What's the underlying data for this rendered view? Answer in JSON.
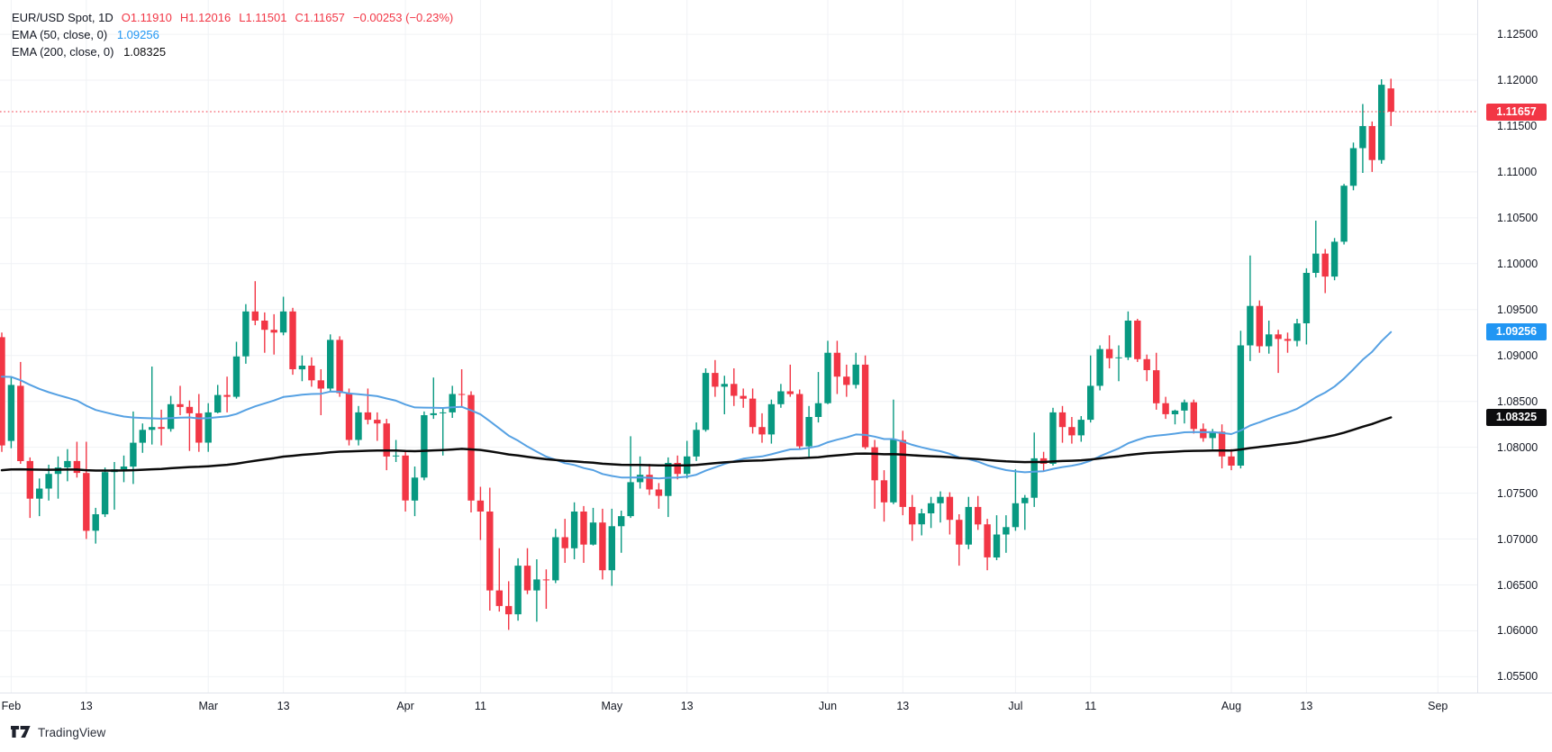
{
  "legend": {
    "symbol_text": "EUR/USD Spot, 1D",
    "ohlc_parts": [
      "O1.11910",
      "H1.12016",
      "L1.11501",
      "C1.11657",
      "−0.00253 (−0.23%)"
    ]
  },
  "logo": {
    "text": "TradingView"
  },
  "colors": {
    "up": "#089981",
    "down": "#f23645",
    "grid": "#f0f2f5",
    "axis_text": "#131722",
    "last_price": "#f23645",
    "background": "#ffffff"
  },
  "price_axis": {
    "labels": [
      "1.12500",
      "1.12000",
      "1.11500",
      "1.11000",
      "1.10500",
      "1.10000",
      "1.09500",
      "1.09000",
      "1.08500",
      "1.08000",
      "1.07500",
      "1.07000",
      "1.06500",
      "1.06000",
      "1.05500"
    ]
  },
  "time_axis": {
    "ticks": [
      {
        "label": "Feb",
        "index": 1
      },
      {
        "label": "13",
        "index": 9
      },
      {
        "label": "Mar",
        "index": 22
      },
      {
        "label": "13",
        "index": 30
      },
      {
        "label": "Apr",
        "index": 43
      },
      {
        "label": "11",
        "index": 51
      },
      {
        "label": "May",
        "index": 65
      },
      {
        "label": "13",
        "index": 73
      },
      {
        "label": "Jun",
        "index": 88
      },
      {
        "label": "13",
        "index": 96
      },
      {
        "label": "Jul",
        "index": 108
      },
      {
        "label": "11",
        "index": 116
      },
      {
        "label": "Aug",
        "index": 131
      },
      {
        "label": "13",
        "index": 139
      },
      {
        "label": "Sep",
        "index": 153
      }
    ]
  },
  "chart_data": {
    "type": "candlestick",
    "title": "EUR/USD Spot, 1D",
    "symbol": "EUR/USD Spot",
    "timeframe": "1D",
    "last_price": "1.11657",
    "change": "−0.00253",
    "change_pct": "−0.23%",
    "ylim": [
      1.0533,
      1.1287
    ],
    "grid_step": 0.005,
    "legend_position": "top-left",
    "indicators": [
      {
        "name": "ema-50-line",
        "label": "EMA (50, close, 0)",
        "period": 50,
        "source": "close",
        "offset": 0,
        "current_value": "1.09256",
        "start_value": 1.0877,
        "color": "#56a1e3",
        "width": 2,
        "value_color": "#2196f3"
      },
      {
        "name": "ema-200-line",
        "label": "EMA (200, close, 0)",
        "period": 200,
        "source": "close",
        "offset": 0,
        "current_value": "1.08325",
        "start_value": 1.0775,
        "color": "#0b0b0b",
        "width": 2.5,
        "value_color": "#0c0c0e"
      }
    ],
    "candles": {
      "columns": [
        "date",
        "open",
        "high",
        "low",
        "close"
      ],
      "rows": [
        [
          "Jan 31",
          1.092,
          1.0925,
          1.0795,
          1.0802
        ],
        [
          "Feb 1",
          1.0807,
          1.0876,
          1.0799,
          1.0868
        ],
        [
          "Feb 2",
          1.0867,
          1.0893,
          1.0782,
          1.0785
        ],
        [
          "Feb 5",
          1.0785,
          1.0789,
          1.0723,
          1.0744
        ],
        [
          "Feb 6",
          1.0744,
          1.0766,
          1.0725,
          1.0755
        ],
        [
          "Feb 7",
          1.0755,
          1.0781,
          1.0742,
          1.0771
        ],
        [
          "Feb 8",
          1.0771,
          1.079,
          1.0744,
          1.0778
        ],
        [
          "Feb 9",
          1.0778,
          1.0798,
          1.0763,
          1.0785
        ],
        [
          "Feb 12",
          1.0785,
          1.0806,
          1.0767,
          1.0772
        ],
        [
          "Feb 13",
          1.0772,
          1.0806,
          1.07,
          1.0709
        ],
        [
          "Feb 14",
          1.0709,
          1.0734,
          1.0695,
          1.0727
        ],
        [
          "Feb 15",
          1.0727,
          1.0778,
          1.0724,
          1.0773
        ],
        [
          "Feb 16",
          1.0773,
          1.0784,
          1.0732,
          1.0776
        ],
        [
          "Feb 19",
          1.0776,
          1.0791,
          1.0762,
          1.0779
        ],
        [
          "Feb 20",
          1.0779,
          1.0839,
          1.076,
          1.0805
        ],
        [
          "Feb 21",
          1.0805,
          1.0826,
          1.0794,
          1.0819
        ],
        [
          "Feb 22",
          1.0819,
          1.0888,
          1.0803,
          1.0822
        ],
        [
          "Feb 23",
          1.0822,
          1.0841,
          1.0802,
          1.082
        ],
        [
          "Feb 26",
          1.082,
          1.0856,
          1.0817,
          1.0847
        ],
        [
          "Feb 27",
          1.0847,
          1.0867,
          1.0835,
          1.0844
        ],
        [
          "Feb 28",
          1.0844,
          1.0851,
          1.0796,
          1.0837
        ],
        [
          "Feb 29",
          1.0837,
          1.0858,
          1.0795,
          1.0805
        ],
        [
          "Mar 1",
          1.0805,
          1.0848,
          1.0795,
          1.0838
        ],
        [
          "Mar 4",
          1.0838,
          1.0868,
          1.0837,
          1.0857
        ],
        [
          "Mar 5",
          1.0857,
          1.0877,
          1.0838,
          1.0855
        ],
        [
          "Mar 6",
          1.0855,
          1.0915,
          1.0853,
          1.0899
        ],
        [
          "Mar 7",
          1.0899,
          1.0956,
          1.0891,
          1.0948
        ],
        [
          "Mar 8",
          1.0948,
          1.0981,
          1.0933,
          1.0938
        ],
        [
          "Mar 11",
          1.0938,
          1.0947,
          1.0903,
          1.0928
        ],
        [
          "Mar 12",
          1.0928,
          1.0945,
          1.0901,
          1.0925
        ],
        [
          "Mar 13",
          1.0925,
          1.0964,
          1.0922,
          1.0948
        ],
        [
          "Mar 14",
          1.0948,
          1.0952,
          1.0879,
          1.0885
        ],
        [
          "Mar 15",
          1.0885,
          1.09,
          1.0872,
          1.0889
        ],
        [
          "Mar 18",
          1.0889,
          1.0898,
          1.0866,
          1.0873
        ],
        [
          "Mar 19",
          1.0873,
          1.0885,
          1.0835,
          1.0864
        ],
        [
          "Mar 20",
          1.0864,
          1.0923,
          1.086,
          1.0917
        ],
        [
          "Mar 21",
          1.0917,
          1.0921,
          1.0855,
          1.0859
        ],
        [
          "Mar 22",
          1.0859,
          1.0864,
          1.0802,
          1.0808
        ],
        [
          "Mar 25",
          1.0808,
          1.0845,
          1.0802,
          1.0838
        ],
        [
          "Mar 26",
          1.0838,
          1.0864,
          1.0825,
          1.083
        ],
        [
          "Mar 27",
          1.083,
          1.0838,
          1.0807,
          1.0826
        ],
        [
          "Mar 28",
          1.0826,
          1.0831,
          1.0775,
          1.079
        ],
        [
          "Mar 29",
          1.079,
          1.0808,
          1.0784,
          1.0791
        ],
        [
          "Apr 1",
          1.0791,
          1.0797,
          1.073,
          1.0742
        ],
        [
          "Apr 2",
          1.0742,
          1.0779,
          1.0725,
          1.0767
        ],
        [
          "Apr 3",
          1.0767,
          1.0839,
          1.0764,
          1.0835
        ],
        [
          "Apr 4",
          1.0835,
          1.0876,
          1.0831,
          1.0837
        ],
        [
          "Apr 5",
          1.0837,
          1.0842,
          1.0791,
          1.0838
        ],
        [
          "Apr 8",
          1.0838,
          1.0867,
          1.0832,
          1.0858
        ],
        [
          "Apr 9",
          1.0858,
          1.0885,
          1.0844,
          1.0857
        ],
        [
          "Apr 10",
          1.0857,
          1.0861,
          1.0729,
          1.0742
        ],
        [
          "Apr 11",
          1.0742,
          1.0757,
          1.0699,
          1.073
        ],
        [
          "Apr 12",
          1.073,
          1.0756,
          1.0622,
          1.0644
        ],
        [
          "Apr 15",
          1.0644,
          1.069,
          1.0621,
          1.0627
        ],
        [
          "Apr 16",
          1.0627,
          1.0654,
          1.0601,
          1.0618
        ],
        [
          "Apr 17",
          1.0618,
          1.0679,
          1.0611,
          1.0671
        ],
        [
          "Apr 18",
          1.0671,
          1.069,
          1.064,
          1.0644
        ],
        [
          "Apr 19",
          1.0644,
          1.0678,
          1.061,
          1.0656
        ],
        [
          "Apr 22",
          1.0656,
          1.0667,
          1.0624,
          1.0655
        ],
        [
          "Apr 23",
          1.0655,
          1.0711,
          1.0652,
          1.0702
        ],
        [
          "Apr 24",
          1.0702,
          1.0722,
          1.0674,
          1.069
        ],
        [
          "Apr 25",
          1.069,
          1.074,
          1.0678,
          1.073
        ],
        [
          "Apr 26",
          1.073,
          1.0736,
          1.0674,
          1.0694
        ],
        [
          "Apr 29",
          1.0694,
          1.0734,
          1.0693,
          1.0718
        ],
        [
          "Apr 30",
          1.0718,
          1.0733,
          1.0656,
          1.0666
        ],
        [
          "May 1",
          1.0666,
          1.0733,
          1.0649,
          1.0714
        ],
        [
          "May 2",
          1.0714,
          1.0731,
          1.0685,
          1.0725
        ],
        [
          "May 3",
          1.0725,
          1.0812,
          1.0723,
          1.0762
        ],
        [
          "May 6",
          1.0762,
          1.079,
          1.0755,
          1.077
        ],
        [
          "May 7",
          1.077,
          1.0782,
          1.0748,
          1.0754
        ],
        [
          "May 8",
          1.0754,
          1.0761,
          1.0733,
          1.0747
        ],
        [
          "May 9",
          1.0747,
          1.0789,
          1.0724,
          1.0783
        ],
        [
          "May 10",
          1.0783,
          1.0791,
          1.0765,
          1.0771
        ],
        [
          "May 13",
          1.0771,
          1.0807,
          1.0766,
          1.079
        ],
        [
          "May 14",
          1.079,
          1.0827,
          1.0785,
          1.0819
        ],
        [
          "May 15",
          1.0819,
          1.0886,
          1.0817,
          1.0881
        ],
        [
          "May 16",
          1.0881,
          1.0895,
          1.0855,
          1.0866
        ],
        [
          "May 17",
          1.0866,
          1.0878,
          1.0836,
          1.0869
        ],
        [
          "May 20",
          1.0869,
          1.0886,
          1.0845,
          1.0856
        ],
        [
          "May 21",
          1.0856,
          1.0864,
          1.0843,
          1.0853
        ],
        [
          "May 22",
          1.0853,
          1.0864,
          1.0815,
          1.0822
        ],
        [
          "May 23",
          1.0822,
          1.0837,
          1.0805,
          1.0814
        ],
        [
          "May 24",
          1.0814,
          1.0852,
          1.0804,
          1.0847
        ],
        [
          "May 27",
          1.0847,
          1.0869,
          1.0843,
          1.0861
        ],
        [
          "May 28",
          1.0861,
          1.089,
          1.0855,
          1.0858
        ],
        [
          "May 29",
          1.0858,
          1.0863,
          1.0798,
          1.0801
        ],
        [
          "May 30",
          1.0801,
          1.0845,
          1.0788,
          1.0833
        ],
        [
          "May 31",
          1.0833,
          1.0882,
          1.0827,
          1.0848
        ],
        [
          "Jun 3",
          1.0848,
          1.0916,
          1.0847,
          1.0903
        ],
        [
          "Jun 4",
          1.0903,
          1.0916,
          1.0858,
          1.0877
        ],
        [
          "Jun 5",
          1.0877,
          1.089,
          1.0855,
          1.0868
        ],
        [
          "Jun 6",
          1.0868,
          1.0903,
          1.0864,
          1.089
        ],
        [
          "Jun 7",
          1.089,
          1.09,
          1.0798,
          1.08
        ],
        [
          "Jun 10",
          1.08,
          1.0808,
          1.0733,
          1.0764
        ],
        [
          "Jun 11",
          1.0764,
          1.0775,
          1.0719,
          1.074
        ],
        [
          "Jun 12",
          1.074,
          1.0852,
          1.0738,
          1.0808
        ],
        [
          "Jun 13",
          1.0808,
          1.0818,
          1.0726,
          1.0735
        ],
        [
          "Jun 14",
          1.0735,
          1.0748,
          1.0698,
          1.0716
        ],
        [
          "Jun 17",
          1.0716,
          1.0733,
          1.0704,
          1.0728
        ],
        [
          "Jun 18",
          1.0728,
          1.0746,
          1.0712,
          1.0739
        ],
        [
          "Jun 19",
          1.0739,
          1.0752,
          1.0718,
          1.0746
        ],
        [
          "Jun 20",
          1.0746,
          1.0751,
          1.0705,
          1.0721
        ],
        [
          "Jun 21",
          1.0721,
          1.0727,
          1.0671,
          1.0694
        ],
        [
          "Jun 24",
          1.0694,
          1.0746,
          1.0689,
          1.0735
        ],
        [
          "Jun 25",
          1.0735,
          1.0747,
          1.071,
          1.0716
        ],
        [
          "Jun 26",
          1.0716,
          1.0722,
          1.0666,
          1.068
        ],
        [
          "Jun 27",
          1.068,
          1.0726,
          1.0677,
          1.0705
        ],
        [
          "Jun 28",
          1.0705,
          1.0726,
          1.0685,
          1.0713
        ],
        [
          "Jul 1",
          1.0713,
          1.0776,
          1.0709,
          1.0739
        ],
        [
          "Jul 2",
          1.0739,
          1.0748,
          1.071,
          1.0745
        ],
        [
          "Jul 3",
          1.0745,
          1.0816,
          1.0735,
          1.0788
        ],
        [
          "Jul 4",
          1.0788,
          1.0795,
          1.0774,
          1.0782
        ],
        [
          "Jul 5",
          1.0782,
          1.0843,
          1.078,
          1.0838
        ],
        [
          "Jul 8",
          1.0838,
          1.0845,
          1.0805,
          1.0822
        ],
        [
          "Jul 9",
          1.0822,
          1.0833,
          1.0804,
          1.0813
        ],
        [
          "Jul 10",
          1.0813,
          1.0834,
          1.0806,
          1.083
        ],
        [
          "Jul 11",
          1.083,
          1.09,
          1.0827,
          1.0867
        ],
        [
          "Jul 12",
          1.0867,
          1.0911,
          1.0862,
          1.0907
        ],
        [
          "Jul 15",
          1.0907,
          1.0922,
          1.0886,
          1.0897
        ],
        [
          "Jul 16",
          1.0897,
          1.0911,
          1.0872,
          1.0898
        ],
        [
          "Jul 17",
          1.0898,
          1.0948,
          1.0895,
          1.0938
        ],
        [
          "Jul 18",
          1.0938,
          1.094,
          1.0893,
          1.0896
        ],
        [
          "Jul 19",
          1.0896,
          1.0901,
          1.0872,
          1.0884
        ],
        [
          "Jul 22",
          1.0884,
          1.0903,
          1.0841,
          1.0848
        ],
        [
          "Jul 23",
          1.0848,
          1.0855,
          1.0831,
          1.0836
        ],
        [
          "Jul 24",
          1.0836,
          1.0841,
          1.0825,
          1.084
        ],
        [
          "Jul 25",
          1.084,
          1.0852,
          1.0826,
          1.0849
        ],
        [
          "Jul 26",
          1.0849,
          1.0852,
          1.0815,
          1.082
        ],
        [
          "Jul 29",
          1.082,
          1.0826,
          1.0806,
          1.081
        ],
        [
          "Jul 30",
          1.081,
          1.082,
          1.0798,
          1.0817
        ],
        [
          "Jul 31",
          1.0817,
          1.0825,
          1.0777,
          1.079
        ],
        [
          "Aug 1",
          1.079,
          1.0798,
          1.0775,
          1.078
        ],
        [
          "Aug 2",
          1.078,
          1.0927,
          1.0777,
          1.0911
        ],
        [
          "Aug 5",
          1.0911,
          1.1009,
          1.0894,
          1.0954
        ],
        [
          "Aug 6",
          1.0954,
          1.096,
          1.0903,
          1.091
        ],
        [
          "Aug 7",
          1.091,
          1.0938,
          1.0902,
          1.0923
        ],
        [
          "Aug 8",
          1.0923,
          1.0928,
          1.0881,
          1.0918
        ],
        [
          "Aug 9",
          1.0918,
          1.0925,
          1.0903,
          1.0916
        ],
        [
          "Aug 12",
          1.0916,
          1.094,
          1.091,
          1.0935
        ],
        [
          "Aug 13",
          1.0935,
          1.0995,
          1.0912,
          1.099
        ],
        [
          "Aug 14",
          1.099,
          1.1047,
          1.0985,
          1.1011
        ],
        [
          "Aug 15",
          1.1011,
          1.1016,
          1.0968,
          1.0986
        ],
        [
          "Aug 16",
          1.0986,
          1.1028,
          1.0982,
          1.1024
        ],
        [
          "Aug 19",
          1.1024,
          1.1087,
          1.1021,
          1.1085
        ],
        [
          "Aug 20",
          1.1085,
          1.1132,
          1.108,
          1.1126
        ],
        [
          "Aug 21",
          1.1126,
          1.1174,
          1.1099,
          1.115
        ],
        [
          "Aug 22",
          1.115,
          1.1155,
          1.11,
          1.1113
        ],
        [
          "Aug 23",
          1.1113,
          1.1201,
          1.1109,
          1.1195
        ],
        [
          "Aug 26",
          1.1191,
          1.12016,
          1.11501,
          1.11657
        ]
      ]
    }
  }
}
